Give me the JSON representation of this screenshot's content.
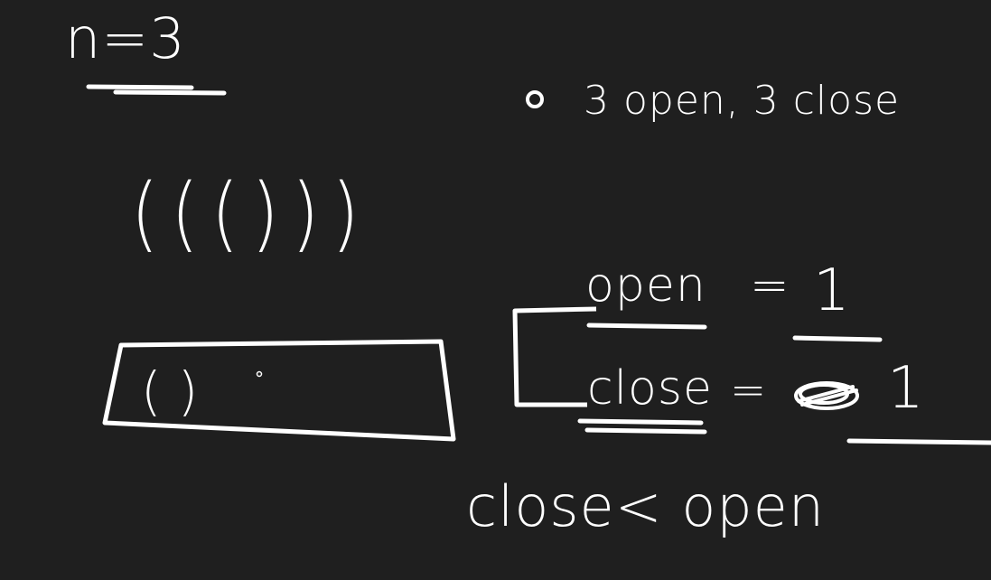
{
  "whiteboard": {
    "n_label": "n=3",
    "note": "3 open, 3 close",
    "parens": "((()))",
    "box_content": "()",
    "open_label": "open",
    "open_equals": "=",
    "open_value": "1",
    "close_label": "close",
    "close_equals": "=",
    "close_value": "1",
    "rule": "close< open"
  },
  "colors": {
    "background": "#1f1f1f",
    "ink": "#ffffff"
  }
}
